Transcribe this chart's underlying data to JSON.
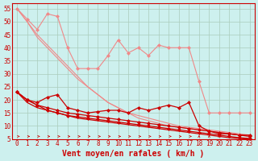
{
  "background_color": "#cdf0ee",
  "grid_color": "#aaccbb",
  "xlabel": "Vent moyen/en rafales ( km/h )",
  "xlim": [
    -0.5,
    23.5
  ],
  "ylim": [
    5,
    57
  ],
  "yticks": [
    5,
    10,
    15,
    20,
    25,
    30,
    35,
    40,
    45,
    50,
    55
  ],
  "xticks": [
    0,
    1,
    2,
    3,
    4,
    5,
    6,
    7,
    8,
    9,
    10,
    11,
    12,
    13,
    14,
    15,
    16,
    17,
    18,
    19,
    20,
    21,
    22,
    23
  ],
  "line_light1_x": [
    0,
    1,
    2,
    3,
    4,
    5,
    6,
    7,
    8,
    9,
    10,
    11,
    12,
    13,
    14,
    15,
    16,
    17,
    18,
    19,
    20,
    21,
    22,
    23
  ],
  "line_light1_y": [
    55,
    51,
    47,
    53,
    52,
    40,
    32,
    32,
    32,
    37,
    43,
    38,
    40,
    37,
    41,
    40,
    40,
    40,
    27,
    15,
    15,
    15,
    15,
    15
  ],
  "line_light2_x": [
    0,
    1,
    2,
    3,
    4,
    5,
    6,
    7,
    8,
    9,
    10,
    11,
    12,
    13,
    14,
    15,
    16,
    17,
    18,
    19,
    20,
    21,
    22,
    23
  ],
  "line_light2_y": [
    55,
    50,
    45,
    41,
    37,
    33,
    29,
    25,
    22,
    19,
    17,
    15,
    14,
    13,
    12,
    11,
    10,
    9.5,
    9,
    8.5,
    8,
    7.5,
    7,
    6.5
  ],
  "line_light3_x": [
    0,
    1,
    2,
    3,
    4,
    5,
    6,
    7,
    8,
    9,
    10,
    11,
    12,
    13,
    14,
    15,
    16,
    17,
    18,
    19,
    20,
    21,
    22,
    23
  ],
  "line_light3_y": [
    55,
    50,
    44,
    40,
    36,
    32,
    28,
    25,
    22,
    19,
    17,
    15,
    13,
    12,
    11,
    10,
    9.5,
    9,
    8.5,
    8,
    7.5,
    7,
    6.5,
    6
  ],
  "line_dark1_x": [
    0,
    1,
    2,
    3,
    4,
    5,
    6,
    7,
    8,
    9,
    10,
    11,
    12,
    13,
    14,
    15,
    16,
    17,
    18,
    19,
    20,
    21,
    22,
    23
  ],
  "line_dark1_y": [
    23,
    20,
    19,
    21,
    22,
    17,
    16,
    15,
    15.5,
    16,
    16,
    15,
    17,
    16,
    17,
    18,
    17,
    19,
    10,
    8,
    7,
    7,
    6.5,
    6.5
  ],
  "line_dark2_x": [
    0,
    1,
    2,
    3,
    4,
    5,
    6,
    7,
    8,
    9,
    10,
    11,
    12,
    13,
    14,
    15,
    16,
    17,
    18,
    19,
    20,
    21,
    22,
    23
  ],
  "line_dark2_y": [
    23,
    20,
    18,
    17,
    16,
    15,
    14.5,
    14,
    13.5,
    13,
    12.5,
    12,
    11.5,
    11,
    10.5,
    10,
    9.5,
    9,
    8.5,
    8,
    7.5,
    7,
    6.5,
    6
  ],
  "line_dark3_x": [
    0,
    1,
    2,
    3,
    4,
    5,
    6,
    7,
    8,
    9,
    10,
    11,
    12,
    13,
    14,
    15,
    16,
    17,
    18,
    19,
    20,
    21,
    22,
    23
  ],
  "line_dark3_y": [
    23,
    20,
    18,
    16,
    15,
    14,
    13.5,
    13,
    12.5,
    12,
    11.5,
    11,
    10.5,
    10,
    9.5,
    9,
    8.5,
    8,
    7.5,
    7,
    6.5,
    6,
    5.5,
    5.2
  ],
  "line_dark4_x": [
    0,
    1,
    2,
    3,
    4,
    5,
    6,
    7,
    8,
    9,
    10,
    11,
    12,
    13,
    14,
    15,
    16,
    17,
    18,
    19,
    20,
    21,
    22,
    23
  ],
  "line_dark4_y": [
    23,
    19,
    17,
    16,
    15,
    14,
    13,
    12.5,
    12,
    11.5,
    11,
    10.5,
    10,
    9.5,
    9,
    8.5,
    8,
    7.5,
    7,
    6.5,
    6,
    5.5,
    5.2,
    5.0
  ],
  "color_light": "#f08888",
  "color_dark": "#cc0000",
  "xlabel_fontsize": 7,
  "tick_fontsize": 5.5
}
